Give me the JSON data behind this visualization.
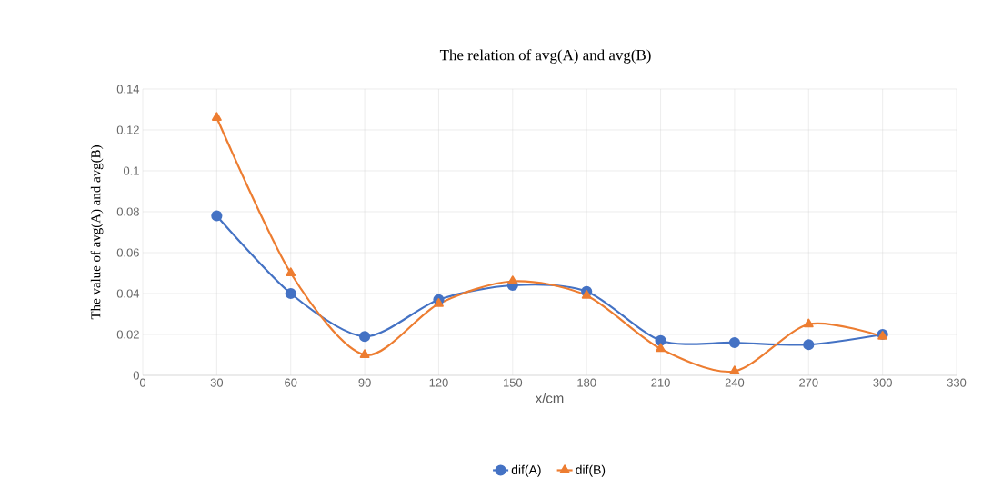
{
  "chart_data": {
    "type": "line",
    "title": "The relation of avg(A) and avg(B)",
    "xlabel": "x/cm",
    "ylabel": "The value of avg(A) and avg(B)",
    "x": [
      30,
      60,
      90,
      120,
      150,
      180,
      210,
      240,
      270,
      300
    ],
    "series": [
      {
        "name": "dif(A)",
        "color": "#4472c4",
        "marker": "circle",
        "values": [
          0.078,
          0.04,
          0.019,
          0.037,
          0.044,
          0.041,
          0.017,
          0.016,
          0.015,
          0.02
        ]
      },
      {
        "name": "dif(B)",
        "color": "#ed7d31",
        "marker": "triangle",
        "values": [
          0.126,
          0.05,
          0.01,
          0.035,
          0.046,
          0.039,
          0.013,
          0.002,
          0.025,
          0.019
        ]
      }
    ],
    "xlim": [
      0,
      330
    ],
    "xticks": [
      0,
      30,
      60,
      90,
      120,
      150,
      180,
      210,
      240,
      270,
      300,
      330
    ],
    "ylim": [
      0,
      0.14
    ],
    "yticks": [
      0,
      0.02,
      0.04,
      0.06,
      0.08,
      0.1,
      0.12,
      0.14
    ],
    "grid": true,
    "legend": "bottom",
    "line_style": "solid"
  }
}
